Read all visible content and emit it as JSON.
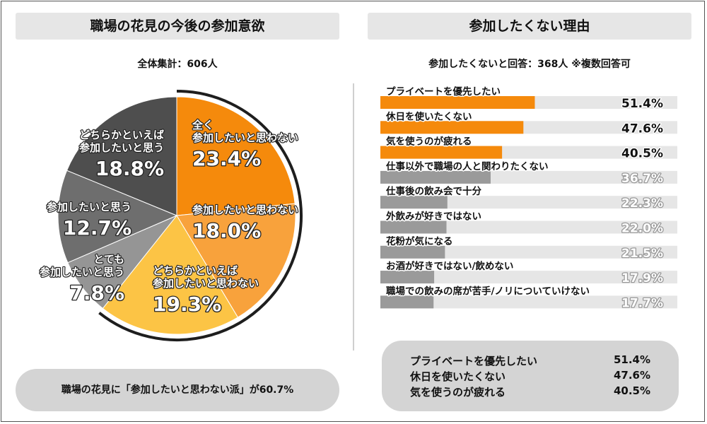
{
  "left_panel": {
    "title": "職場の花見の今後の参加意欲",
    "subtitle": "全体集計：606人",
    "summary": "職場の花見に「参加したいと思わない派」が60.7%"
  },
  "right_panel": {
    "title": "参加したくない理由",
    "subtitle": "参加したくないと回答：368人 ※複数回答可",
    "summary_rows": [
      {
        "label": "プライベートを優先したい",
        "value": "51.4%"
      },
      {
        "label": "休日を使いたくない",
        "value": "47.6%"
      },
      {
        "label": "気を使うのが疲れる",
        "value": "40.5%"
      }
    ]
  },
  "chart_data": [
    {
      "type": "pie",
      "title": "職場の花見の今後の参加意欲",
      "slices": [
        {
          "label_lines": [
            "全く",
            "参加したいと思わない"
          ],
          "value": 23.4,
          "value_label": "23.4%",
          "color": "#f58a0c"
        },
        {
          "label_lines": [
            "参加したいと思わない"
          ],
          "value": 18.0,
          "value_label": "18.0%",
          "color": "#f8a23c"
        },
        {
          "label_lines": [
            "どちらかといえば",
            "参加したいと思わない"
          ],
          "value": 19.3,
          "value_label": "19.3%",
          "color": "#fcc445"
        },
        {
          "label_lines": [
            "とても",
            "参加したいと思う"
          ],
          "value": 7.8,
          "value_label": "7.8%",
          "color": "#959595"
        },
        {
          "label_lines": [
            "参加したいと思う"
          ],
          "value": 12.7,
          "value_label": "12.7%",
          "color": "#6e6e6e"
        },
        {
          "label_lines": [
            "どちらかといえば",
            "参加したいと思う"
          ],
          "value": 18.8,
          "value_label": "18.8%",
          "color": "#4e4e4e"
        }
      ]
    },
    {
      "type": "bar",
      "orientation": "horizontal",
      "title": "参加したくない理由",
      "categories": [
        "プライベートを優先したい",
        "休日を使いたくない",
        "気を使うのが疲れる",
        "仕事以外で職場の人と関わりたくない",
        "仕事後の飲み会で十分",
        "外飲みが好きではない",
        "花粉が気になる",
        "お酒が好きではない/飲めない",
        "職場での飲みの席が苦手/ノリについていけない"
      ],
      "values": [
        51.4,
        47.6,
        40.5,
        36.7,
        22.3,
        22.0,
        21.5,
        17.9,
        17.7
      ],
      "value_labels": [
        "51.4%",
        "47.6%",
        "40.5%",
        "36.7%",
        "22.3%",
        "22.0%",
        "21.5%",
        "17.9%",
        "17.7%"
      ],
      "highlight_color": "#f58a0c",
      "base_color": "#9a9a9a",
      "track_color": "#e6e6e6"
    }
  ]
}
